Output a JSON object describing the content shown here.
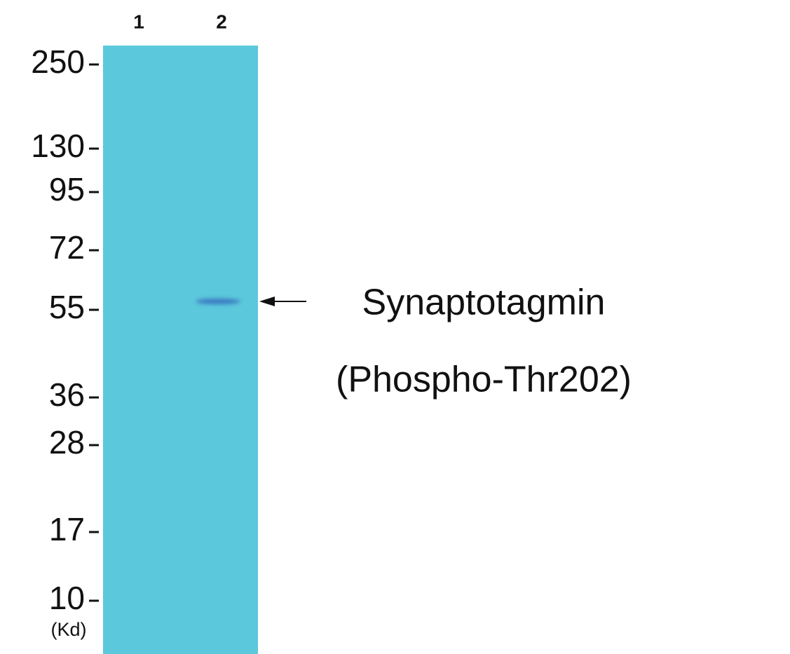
{
  "lanes": [
    "1",
    "2"
  ],
  "markers": [
    "250",
    "130",
    "95",
    "72",
    "55",
    "36",
    "28",
    "17",
    "10"
  ],
  "unit": "(Kd)",
  "target": [
    "Synaptotagmin",
    "(Phospho-Thr202)"
  ]
}
